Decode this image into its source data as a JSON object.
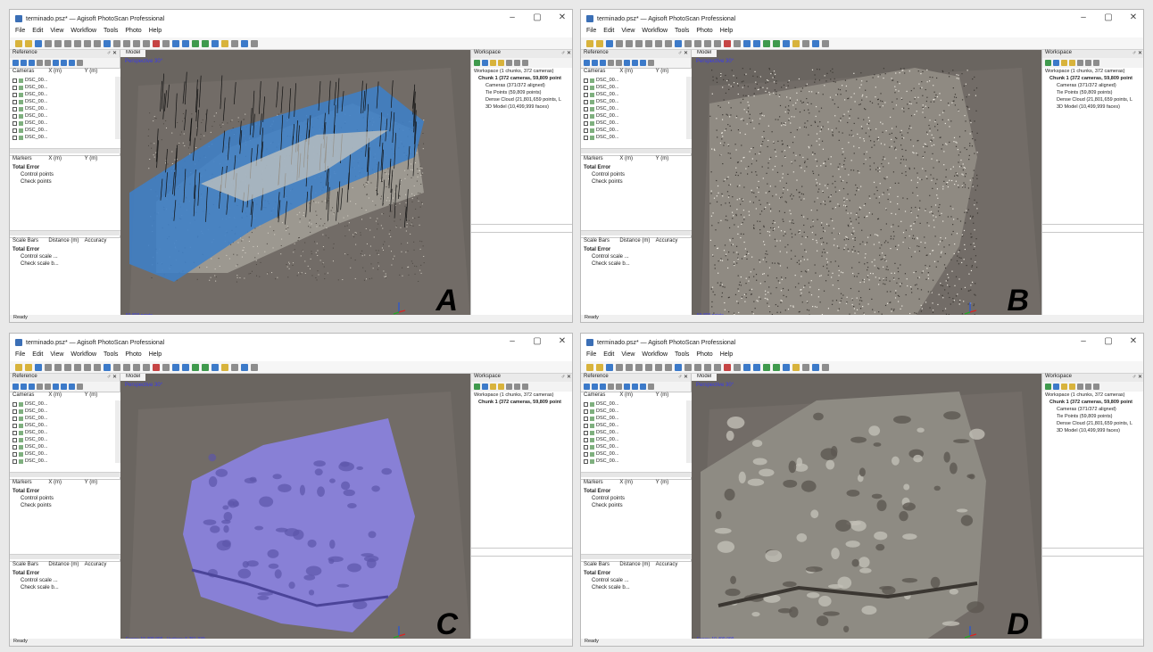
{
  "common": {
    "window_title": "terminado.psz* — Agisoft PhotoScan Professional",
    "window_controls": [
      "–",
      "▢",
      "✕"
    ],
    "menu": [
      "File",
      "Edit",
      "View",
      "Workflow",
      "Tools",
      "Photo",
      "Help"
    ],
    "reference": {
      "title": "Reference",
      "close": "♂ ✕",
      "cameras_headers": [
        "Cameras",
        "X (m)",
        "Y (m)"
      ],
      "camera_rows": [
        "DSC_00...",
        "DSC_00...",
        "DSC_00...",
        "DSC_00...",
        "DSC_00...",
        "DSC_00...",
        "DSC_00...",
        "DSC_00...",
        "DSC_00..."
      ],
      "markers_headers": [
        "Markers",
        "X (m)",
        "Y (m)"
      ],
      "markers_tree": [
        "Total Error",
        "Control points",
        "Check points"
      ],
      "scale_headers": [
        "Scale Bars",
        "Distance (m)",
        "Accuracy"
      ],
      "scale_tree": [
        "Total Error",
        "Control scale ...",
        "Check scale b..."
      ]
    },
    "model_tab": "Model",
    "perspective": "Perspective 30°",
    "workspace_title": "Workspace",
    "workspace_close": "♂ ✕",
    "status_ready": "Ready"
  },
  "panels": {
    "a": {
      "letter": "A",
      "vp_status": "59,809 points",
      "tree": [
        {
          "text": "Workspace (1 chunks, 372 cameras)",
          "level": 0
        },
        {
          "text": "Chunk 1 (372 cameras, 59,809 point",
          "level": 1
        },
        {
          "text": "Cameras (371/372 aligned)",
          "level": 2
        },
        {
          "text": "Tie Points (59,809 points)",
          "level": 2
        },
        {
          "text": "Dense Cloud (21,801,659 points, L",
          "level": 2
        },
        {
          "text": "3D Model (10,499,999 faces)",
          "level": 2
        }
      ]
    },
    "b": {
      "letter": "B",
      "vp_status": "59,809 points",
      "tree": [
        {
          "text": "Workspace (1 chunks, 372 cameras)",
          "level": 0
        },
        {
          "text": "Chunk 1 (372 cameras, 59,809 point",
          "level": 1
        },
        {
          "text": "Cameras (371/372 aligned)",
          "level": 2
        },
        {
          "text": "Tie Points (59,809 points)",
          "level": 2
        },
        {
          "text": "Dense Cloud (21,801,659 points, L",
          "level": 2
        },
        {
          "text": "3D Model (10,499,999 faces)",
          "level": 2
        }
      ]
    },
    "c": {
      "letter": "C",
      "vp_status": "Faces: 10,499,999 · Vertices: 5,251,339",
      "tree": [
        {
          "text": "Workspace (1 chunks, 372 cameras)",
          "level": 0
        },
        {
          "text": "Chunk 1 (372 cameras, 59,809 point",
          "level": 1
        }
      ]
    },
    "d": {
      "letter": "D",
      "vp_status": "Faces: 10,499,999",
      "tree": [
        {
          "text": "Workspace (1 chunks, 372 cameras)",
          "level": 0
        },
        {
          "text": "Chunk 1 (372 cameras, 59,809 point",
          "level": 1
        },
        {
          "text": "Cameras (371/372 aligned)",
          "level": 2
        },
        {
          "text": "Tie Points (59,809 points)",
          "level": 2
        },
        {
          "text": "Dense Cloud (21,801,659 points, L",
          "level": 2
        },
        {
          "text": "3D Model (10,499,999 faces)",
          "level": 2
        }
      ]
    }
  }
}
